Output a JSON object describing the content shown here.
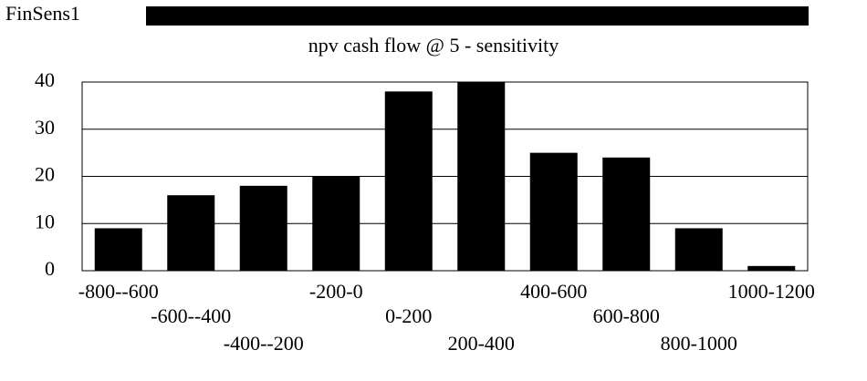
{
  "header": "FinSens1",
  "chart_data": {
    "type": "bar",
    "title": "npv cash flow @ 5 - sensitivity",
    "categories": [
      "-800--600",
      "-600--400",
      "-400--200",
      "-200-0",
      "0-200",
      "200-400",
      "400-600",
      "600-800",
      "800-1000",
      "1000-1200"
    ],
    "values": [
      9,
      16,
      18,
      20,
      38,
      40,
      25,
      24,
      9,
      1
    ],
    "color": "#000000",
    "ylim": [
      0,
      40
    ],
    "yticks": [
      0,
      10,
      20,
      30,
      40
    ],
    "grid": true
  }
}
